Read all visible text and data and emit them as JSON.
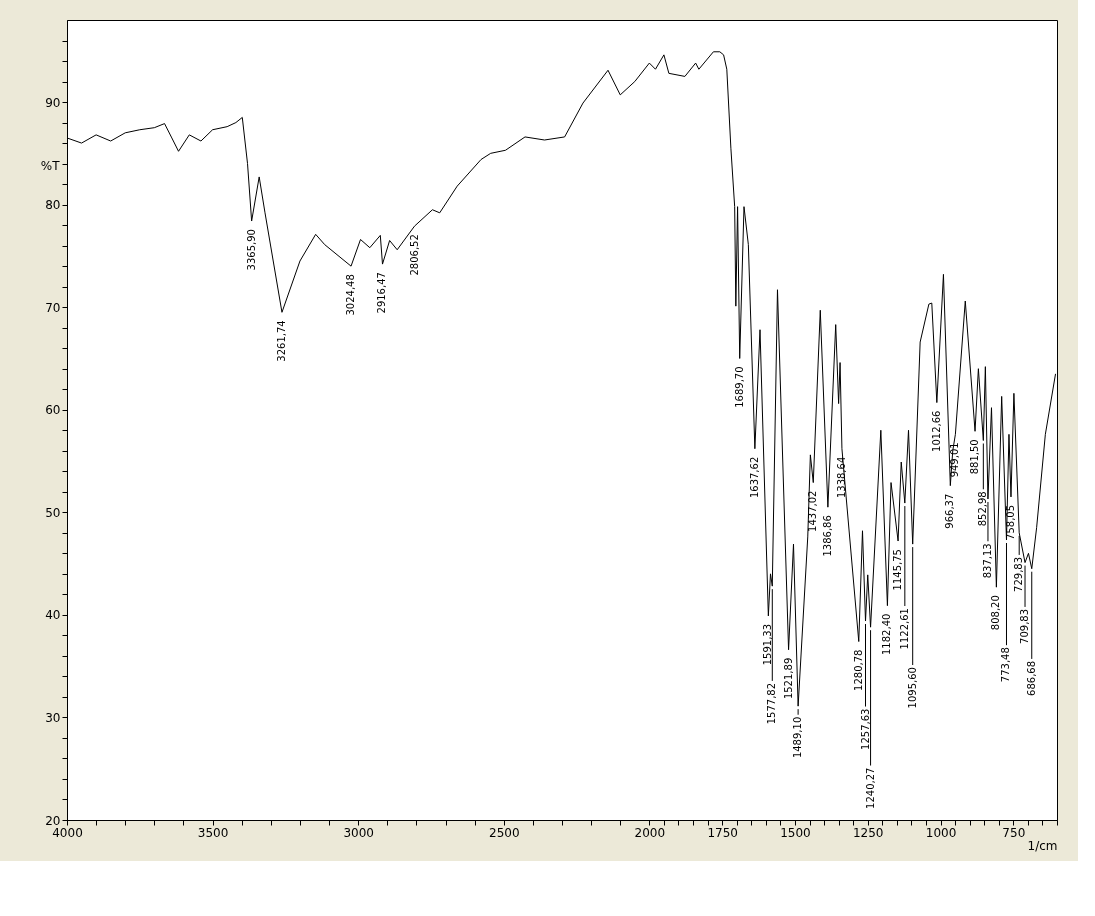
{
  "chart_data": {
    "type": "line",
    "xlabel": "1/cm",
    "ylabel": "%T",
    "xlim": [
      4000,
      600
    ],
    "ylim": [
      20,
      98
    ],
    "xticks": [
      4000,
      {
        "value": 3900,
        "label": null
      },
      {
        "value": 3800,
        "label": null
      },
      {
        "value": 3700,
        "label": null
      },
      {
        "value": 3600,
        "label": null
      },
      3500,
      {
        "value": 3400,
        "label": null
      },
      {
        "value": 3300,
        "label": null
      },
      {
        "value": 3200,
        "label": null
      },
      {
        "value": 3100,
        "label": null
      },
      3000,
      {
        "value": 2900,
        "label": null
      },
      {
        "value": 2800,
        "label": null
      },
      {
        "value": 2700,
        "label": null
      },
      {
        "value": 2600,
        "label": null
      },
      2500,
      {
        "value": 2400,
        "label": null
      },
      {
        "value": 2300,
        "label": null
      },
      {
        "value": 2200,
        "label": null
      },
      {
        "value": 2100,
        "label": null
      },
      2000,
      {
        "value": 1950,
        "label": null
      },
      {
        "value": 1900,
        "label": null
      },
      {
        "value": 1850,
        "label": null
      },
      {
        "value": 1800,
        "label": null
      },
      1750,
      {
        "value": 1700,
        "label": null
      },
      {
        "value": 1650,
        "label": null
      },
      {
        "value": 1600,
        "label": null
      },
      {
        "value": 1550,
        "label": null
      },
      1500,
      {
        "value": 1450,
        "label": null
      },
      {
        "value": 1400,
        "label": null
      },
      {
        "value": 1350,
        "label": null
      },
      {
        "value": 1300,
        "label": null
      },
      1250,
      {
        "value": 1200,
        "label": null
      },
      {
        "value": 1150,
        "label": null
      },
      {
        "value": 1100,
        "label": null
      },
      {
        "value": 1050,
        "label": null
      },
      1000,
      {
        "value": 950,
        "label": null
      },
      {
        "value": 900,
        "label": null
      },
      {
        "value": 850,
        "label": null
      },
      {
        "value": 800,
        "label": null
      },
      750,
      {
        "value": 700,
        "label": null
      },
      {
        "value": 650,
        "label": null
      },
      {
        "value": 600,
        "label": null
      }
    ],
    "yticks": [
      20,
      {
        "value": 22,
        "label": null
      },
      {
        "value": 24,
        "label": null
      },
      {
        "value": 26,
        "label": null
      },
      {
        "value": 28,
        "label": null
      },
      30,
      {
        "value": 32,
        "label": null
      },
      {
        "value": 34,
        "label": null
      },
      {
        "value": 36,
        "label": null
      },
      {
        "value": 38,
        "label": null
      },
      40,
      {
        "value": 42,
        "label": null
      },
      {
        "value": 44,
        "label": null
      },
      {
        "value": 46,
        "label": null
      },
      {
        "value": 48,
        "label": null
      },
      50,
      {
        "value": 52,
        "label": null
      },
      {
        "value": 54,
        "label": null
      },
      {
        "value": 56,
        "label": null
      },
      {
        "value": 58,
        "label": null
      },
      60,
      {
        "value": 62,
        "label": null
      },
      {
        "value": 64,
        "label": null
      },
      {
        "value": 66,
        "label": null
      },
      {
        "value": 68,
        "label": null
      },
      70,
      {
        "value": 72,
        "label": null
      },
      {
        "value": 74,
        "label": null
      },
      {
        "value": 76,
        "label": null
      },
      {
        "value": 78,
        "label": null
      },
      80,
      {
        "value": 82,
        "label": null
      },
      {
        "value": 84,
        "label": null
      },
      {
        "value": 86,
        "label": null
      },
      {
        "value": 88,
        "label": null
      },
      90,
      {
        "value": 92,
        "label": null
      },
      {
        "value": 94,
        "label": null
      },
      {
        "value": 96,
        "label": null
      }
    ],
    "grid": false,
    "marker": "none",
    "line_style": "solid",
    "series": [
      {
        "color": "#000000",
        "x": [
          4000,
          3950,
          3900,
          3850,
          3800,
          3750,
          3700,
          3665,
          3640,
          3617,
          3580,
          3540,
          3500,
          3450,
          3420,
          3398,
          3380,
          3365.9,
          3340,
          3320,
          3261.74,
          3200,
          3146,
          3115,
          3024.48,
          2992,
          2960,
          2924,
          2916.47,
          2892,
          2866,
          2806.52,
          2745,
          2720,
          2660,
          2578,
          2545,
          2494,
          2427,
          2360,
          2291,
          2228,
          2142,
          2100,
          2050,
          2000,
          1979,
          1950,
          1933,
          1878,
          1841,
          1830,
          1780,
          1758,
          1745,
          1734,
          1720,
          1707,
          1703,
          1697,
          1689.7,
          1675,
          1660,
          1637.62,
          1620,
          1591.33,
          1584,
          1577.82,
          1560,
          1521.89,
          1505,
          1489.1,
          1456,
          1447,
          1437.02,
          1413,
          1386.86,
          1360,
          1350,
          1345,
          1338.64,
          1280.78,
          1268,
          1257.63,
          1250,
          1240.27,
          1205,
          1182.4,
          1170,
          1145.75,
          1135,
          1122.61,
          1110,
          1095.6,
          1070,
          1040,
          1030,
          1012.66,
          990,
          966.37,
          958,
          949.01,
          915,
          881.5,
          870,
          852.98,
          846,
          837.13,
          825,
          808.2,
          790,
          773.48,
          765,
          758.05,
          748,
          729.83,
          709.83,
          698,
          686.68,
          670,
          640,
          605
        ],
        "values": [
          86.5,
          86.0,
          86.8,
          86.2,
          87.0,
          87.3,
          87.5,
          87.9,
          86.5,
          85.2,
          86.8,
          86.2,
          87.3,
          87.6,
          88.0,
          88.5,
          84.0,
          78.4,
          82.7,
          79.2,
          69.5,
          74.5,
          77.1,
          76.1,
          74.0,
          76.6,
          75.8,
          77.0,
          74.2,
          76.5,
          75.6,
          77.9,
          79.5,
          79.2,
          81.8,
          84.4,
          85.0,
          85.3,
          86.6,
          86.3,
          86.6,
          89.9,
          93.1,
          90.7,
          92.0,
          93.8,
          93.2,
          94.6,
          92.8,
          92.5,
          93.8,
          93.2,
          94.9,
          94.9,
          94.6,
          93.2,
          85.5,
          79.8,
          70.1,
          79.8,
          65.0,
          79.8,
          76.1,
          56.2,
          67.8,
          39.9,
          44.0,
          42.8,
          71.7,
          36.6,
          46.9,
          31.1,
          47.6,
          55.6,
          52.9,
          69.7,
          50.5,
          68.3,
          60.6,
          64.6,
          56.2,
          37.4,
          48.2,
          39.4,
          43.9,
          38.8,
          58.0,
          40.9,
          52.9,
          47.2,
          54.9,
          50.9,
          58.0,
          46.9,
          66.6,
          70.3,
          70.4,
          60.7,
          73.2,
          52.6,
          56.0,
          57.6,
          70.6,
          57.9,
          64.0,
          57.0,
          64.2,
          51.3,
          60.2,
          42.7,
          61.3,
          47.3,
          57.6,
          51.5,
          61.6,
          48.0,
          45.1,
          46.0,
          44.5,
          48.5,
          57.6,
          63.5
        ]
      }
    ],
    "annotations": [
      {
        "text": "3365,90",
        "x": 3365.9,
        "y": 78.4
      },
      {
        "text": "3261,74",
        "x": 3261.74,
        "y": 69.5
      },
      {
        "text": "3024,48",
        "x": 3024.48,
        "y": 74.0
      },
      {
        "text": "2916,47",
        "x": 2916.47,
        "y": 74.2
      },
      {
        "text": "2806,52",
        "x": 2806.52,
        "y": 77.9
      },
      {
        "text": "1689,70",
        "x": 1689.7,
        "y": 65.0
      },
      {
        "text": "1637,62",
        "x": 1637.62,
        "y": 56.2
      },
      {
        "text": "1591,33",
        "x": 1591.33,
        "y": 39.9
      },
      {
        "text": "1577,82",
        "x": 1577.82,
        "y": 42.8
      },
      {
        "text": "1521,89",
        "x": 1521.89,
        "y": 36.6
      },
      {
        "text": "1489,10",
        "x": 1489.1,
        "y": 31.1
      },
      {
        "text": "1437,02",
        "x": 1437.02,
        "y": 52.9
      },
      {
        "text": "1386,86",
        "x": 1386.86,
        "y": 50.5
      },
      {
        "text": "1338,64",
        "x": 1338.64,
        "y": 56.2
      },
      {
        "text": "1280,78",
        "x": 1280.78,
        "y": 37.4
      },
      {
        "text": "1257,63",
        "x": 1257.63,
        "y": 39.4
      },
      {
        "text": "1240,27",
        "x": 1240.27,
        "y": 38.8
      },
      {
        "text": "1182,40",
        "x": 1182.4,
        "y": 40.9
      },
      {
        "text": "1145,75",
        "x": 1145.75,
        "y": 47.2
      },
      {
        "text": "1122,61",
        "x": 1122.61,
        "y": 50.9
      },
      {
        "text": "1095,60",
        "x": 1095.6,
        "y": 46.9
      },
      {
        "text": "1012,66",
        "x": 1012.66,
        "y": 60.7
      },
      {
        "text": "966,37",
        "x": 966.37,
        "y": 52.6
      },
      {
        "text": "949,01",
        "x": 949.01,
        "y": 57.6
      },
      {
        "text": "881,50",
        "x": 881.5,
        "y": 57.9
      },
      {
        "text": "852,98",
        "x": 852.98,
        "y": 57.0
      },
      {
        "text": "837,13",
        "x": 837.13,
        "y": 51.3
      },
      {
        "text": "808,20",
        "x": 808.2,
        "y": 42.7
      },
      {
        "text": "773,48",
        "x": 773.48,
        "y": 47.3
      },
      {
        "text": "758,05",
        "x": 758.05,
        "y": 51.5
      },
      {
        "text": "729,83",
        "x": 729.83,
        "y": 48.0
      },
      {
        "text": "709,83",
        "x": 709.83,
        "y": 45.1
      },
      {
        "text": "686,68",
        "x": 686.68,
        "y": 44.5
      }
    ]
  }
}
